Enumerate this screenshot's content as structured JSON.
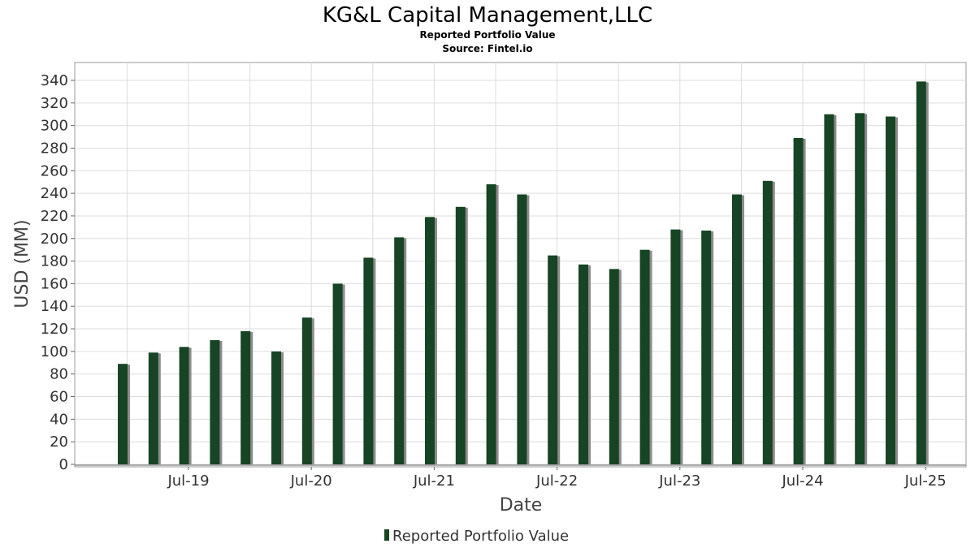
{
  "chart_data": {
    "type": "bar",
    "title": "KG&L Capital Management,LLC",
    "subtitle": "Reported Portfolio Value",
    "source": "Source: Fintel.io",
    "xlabel": "Date",
    "ylabel": "USD (MM)",
    "ylim": [
      0,
      340
    ],
    "y_ticks": [
      0,
      20,
      40,
      60,
      80,
      100,
      120,
      140,
      160,
      180,
      200,
      220,
      240,
      260,
      280,
      300,
      320,
      340
    ],
    "x_tick_labels": [
      "Jul-19",
      "Jul-20",
      "Jul-21",
      "Jul-22",
      "Jul-23",
      "Jul-24",
      "Jul-25"
    ],
    "grid": true,
    "legend_position": "bottom",
    "colors": {
      "bar": "#174424",
      "shadow": "#8c8c8c",
      "plot_border": "#999999"
    },
    "series": [
      {
        "name": "Reported Portfolio Value",
        "categories": [
          "2019-Q1",
          "2019-Q2",
          "2019-Q3",
          "2019-Q4",
          "2020-Q1",
          "2020-Q2",
          "2020-Q3",
          "2020-Q4",
          "2021-Q1",
          "2021-Q2",
          "2021-Q3",
          "2021-Q4",
          "2022-Q1",
          "2022-Q2",
          "2022-Q3",
          "2022-Q4",
          "2023-Q1",
          "2023-Q2",
          "2023-Q3",
          "2023-Q4",
          "2024-Q1",
          "2024-Q2",
          "2024-Q3",
          "2024-Q4",
          "2025-Q1",
          "2025-Q2",
          "2025-Q3"
        ],
        "values": [
          89,
          99,
          104,
          110,
          118,
          100,
          130,
          160,
          183,
          201,
          219,
          228,
          248,
          239,
          185,
          177,
          173,
          190,
          208,
          207,
          239,
          251,
          289,
          310,
          311,
          308,
          339
        ]
      }
    ]
  }
}
